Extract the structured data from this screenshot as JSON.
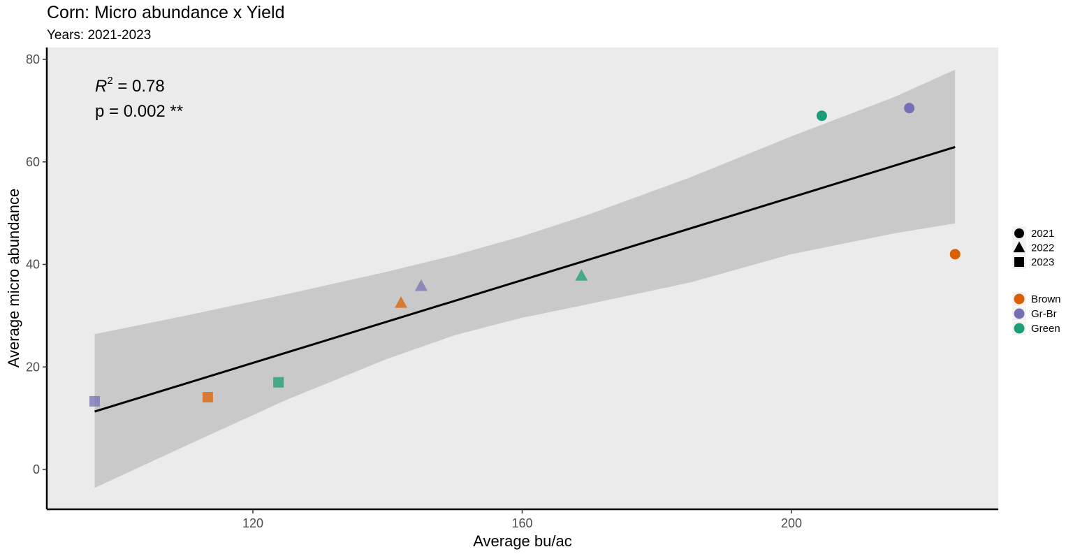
{
  "chart_data": {
    "type": "scatter",
    "title": "Corn: Micro abundance x Yield",
    "subtitle": "Years: 2021-2023",
    "xlabel": "Average bu/ac",
    "ylabel": "Average micro abundance",
    "xlim": [
      92,
      223
    ],
    "ylim": [
      -8,
      82
    ],
    "xticks": [
      120,
      160,
      200
    ],
    "yticks": [
      0,
      20,
      40,
      60,
      80
    ],
    "grid": false,
    "legend_position": "right",
    "annotation": {
      "r2_label": "R",
      "r2_sup": "2",
      "r2_value": " = 0.78",
      "p_text": "p = 0.002 **"
    },
    "shape_legend": [
      {
        "label": "2021",
        "shape": "circle"
      },
      {
        "label": "2022",
        "shape": "triangle"
      },
      {
        "label": "2023",
        "shape": "square"
      }
    ],
    "color_legend": [
      {
        "label": "Brown",
        "color": "#D95F02"
      },
      {
        "label": "Gr-Br",
        "color": "#7570B3"
      },
      {
        "label": "Green",
        "color": "#1B9E77"
      }
    ],
    "points": [
      {
        "x": 204.5,
        "y": 69.0,
        "year": "2021",
        "group": "Green"
      },
      {
        "x": 217.5,
        "y": 70.5,
        "year": "2021",
        "group": "Gr-Br"
      },
      {
        "x": 224.3,
        "y": 42.0,
        "year": "2021",
        "group": "Brown"
      },
      {
        "x": 142.0,
        "y": 32.5,
        "year": "2022",
        "group": "Brown"
      },
      {
        "x": 145.0,
        "y": 35.8,
        "year": "2022",
        "group": "Gr-Br"
      },
      {
        "x": 168.8,
        "y": 37.8,
        "year": "2022",
        "group": "Green"
      },
      {
        "x": 96.5,
        "y": 13.3,
        "year": "2023",
        "group": "Gr-Br"
      },
      {
        "x": 113.3,
        "y": 14.1,
        "year": "2023",
        "group": "Brown"
      },
      {
        "x": 123.8,
        "y": 17.0,
        "year": "2023",
        "group": "Green"
      }
    ],
    "fit_line": {
      "x": [
        96.5,
        224.3
      ],
      "y": [
        11.3,
        62.9
      ]
    },
    "confidence_band": {
      "x": [
        96.5,
        110,
        125,
        140,
        150,
        160,
        170,
        185,
        200,
        215,
        224.3
      ],
      "upper": [
        26.4,
        30.0,
        34.2,
        38.6,
        41.8,
        45.5,
        49.8,
        57.0,
        65.0,
        72.5,
        78.0
      ],
      "lower": [
        -3.6,
        4.6,
        13.6,
        21.6,
        26.2,
        29.6,
        32.3,
        36.5,
        42.0,
        46.0,
        48.0
      ]
    },
    "colors": {
      "panel": "#EBEBEB",
      "band": "#C9C9C9",
      "line": "#000000"
    }
  }
}
